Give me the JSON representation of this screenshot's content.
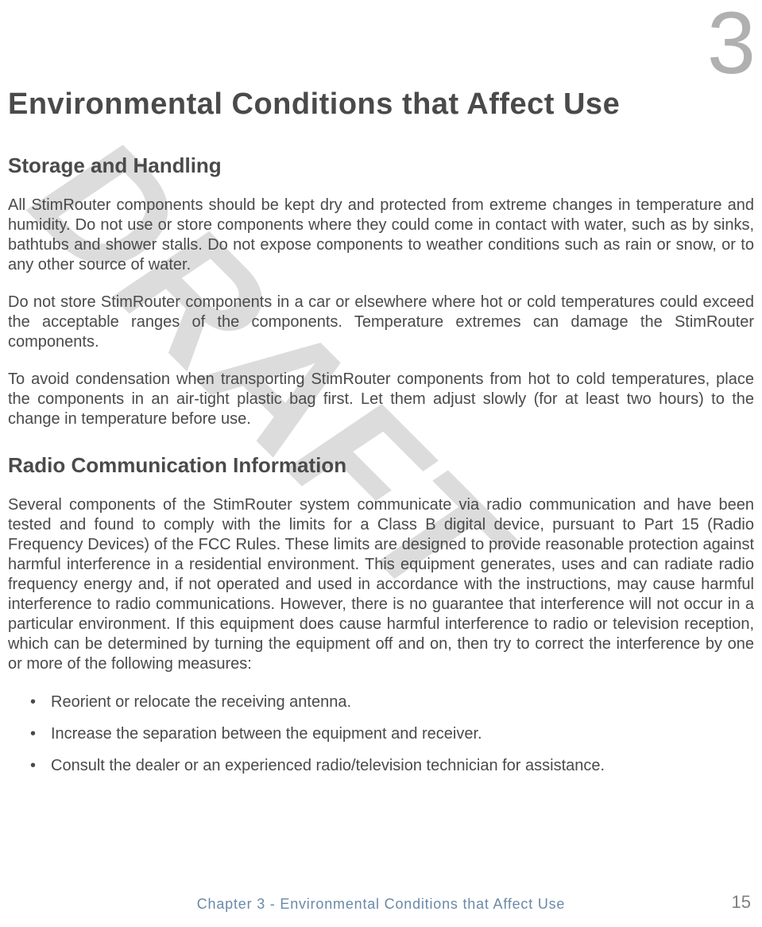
{
  "watermark": {
    "text": "DRAFT",
    "color": "#dcdcdc",
    "rotation_deg": 45,
    "font_size": 210,
    "font_style": "italic",
    "font_weight": "bold"
  },
  "chapter_number": "3",
  "heading": "Environmental Conditions that Affect Use",
  "sections": [
    {
      "title": "Storage and Handling",
      "paragraphs": [
        "All StimRouter components should be kept dry and protected from extreme changes in temperature and humidity. Do not use or store components where they could come in contact with water, such as by sinks, bathtubs and shower stalls. Do not expose components to weather conditions such as rain or snow, or to any other source of water.",
        "Do not store StimRouter components in a car or elsewhere where hot or cold temperatures could exceed the acceptable ranges of the components. Temperature extremes can damage the StimRouter components.",
        "To avoid condensation when transporting StimRouter components from hot to cold temperatures, place the components in an air-tight plastic bag first. Let them adjust slowly (for at least two hours) to the change in temperature before use."
      ]
    },
    {
      "title": "Radio Communication Information",
      "paragraphs": [
        "Several components of the StimRouter system communicate via radio communication and have been tested and found to comply with the limits for a Class B digital device, pursuant to Part 15 (Radio Frequency Devices) of the FCC Rules. These limits are designed to provide reasonable protection against harmful interference in a residential environment. This equipment generates, uses and can radiate radio frequency energy and, if not operated and used in accordance with the instructions, may cause harmful interference to radio communications. However, there is no guarantee that interference will not occur in a particular environment. If this equipment does cause harmful interference to radio or television reception, which can be determined by turning the equipment off and on, then try to correct the interference by one or more of the following measures:"
      ],
      "bullets": [
        "Reorient or relocate the receiving antenna.",
        "Increase the separation between the equipment and receiver.",
        "Consult the dealer or an experienced radio/television technician for assistance."
      ]
    }
  ],
  "footer": {
    "chapter_label": "Chapter 3 - Environmental Conditions that Affect Use",
    "page_number": "15",
    "label_color": "#6a8aa8",
    "page_color": "#808080"
  },
  "colors": {
    "text": "#4a4a4a",
    "watermark": "#dcdcdc",
    "chapter_number": "#b0b0b0",
    "background": "#ffffff"
  },
  "typography": {
    "body_font": "Arial",
    "h1_size": 38,
    "h2_size": 26,
    "body_size": 20,
    "chapter_num_size": 110
  }
}
